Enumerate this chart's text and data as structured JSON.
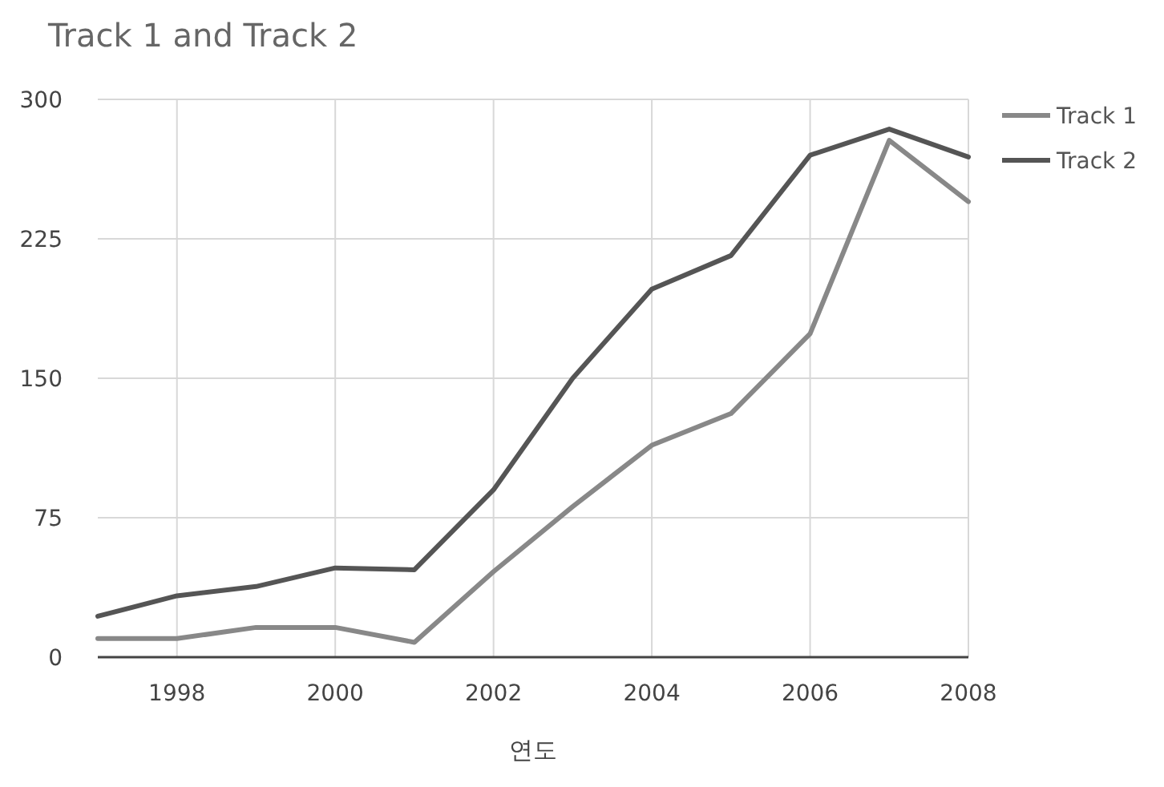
{
  "chart_data": {
    "type": "line",
    "title": "Track 1 and Track 2",
    "xlabel": "연도",
    "x": [
      1997,
      1998,
      1999,
      2000,
      2001,
      2002,
      2003,
      2004,
      2005,
      2006,
      2007,
      2008
    ],
    "series": [
      {
        "name": "Track 1",
        "color": "#888888",
        "values": [
          10,
          10,
          16,
          16,
          8,
          46,
          81,
          114,
          131,
          174,
          278,
          245
        ]
      },
      {
        "name": "Track 2",
        "color": "#555555",
        "values": [
          22,
          33,
          38,
          48,
          47,
          90,
          150,
          198,
          216,
          270,
          284,
          269
        ]
      }
    ],
    "xlim": [
      1997,
      2008
    ],
    "xticks": [
      1998,
      2000,
      2002,
      2004,
      2006,
      2008
    ],
    "ylim": [
      0,
      300
    ],
    "yticks": [
      0,
      75,
      150,
      225,
      300
    ],
    "grid": true,
    "legend": "right",
    "marker": "none",
    "line_style": "solid"
  }
}
